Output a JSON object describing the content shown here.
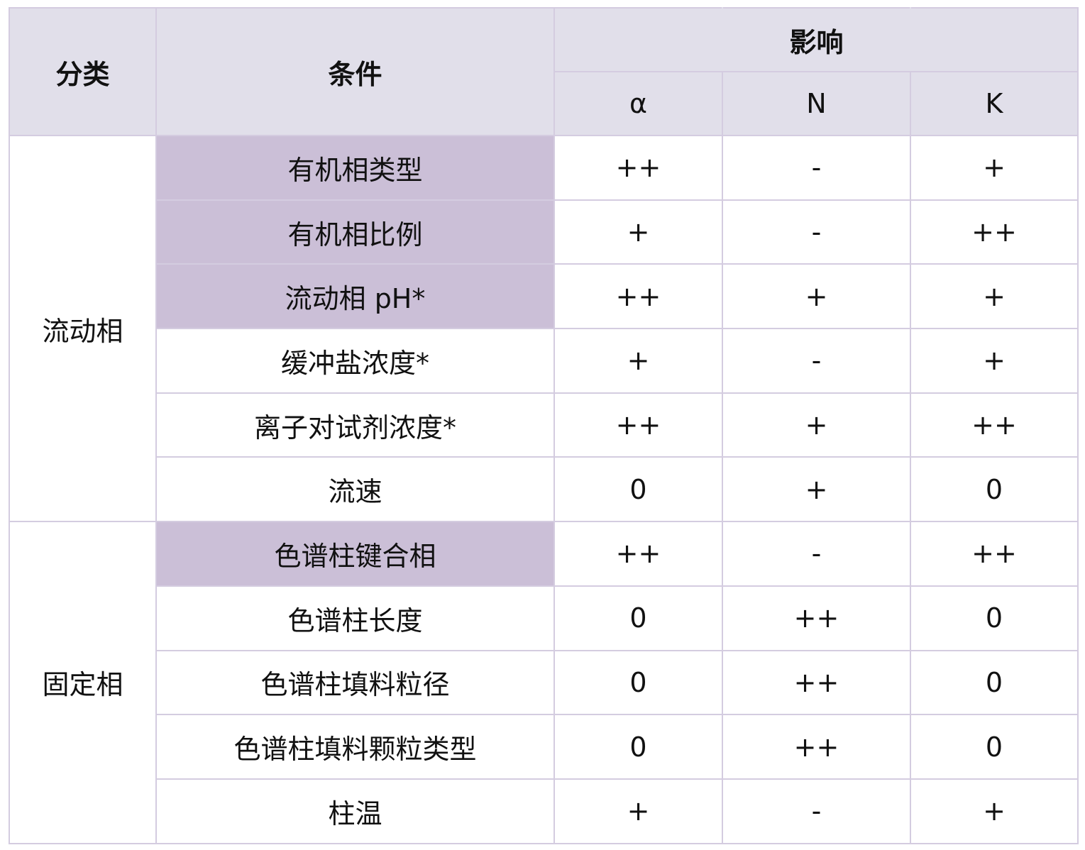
{
  "headers": {
    "category": "分类",
    "condition": "条件",
    "effect": "影响",
    "alpha": "α",
    "n": "N",
    "k": "K"
  },
  "groups": [
    {
      "name": "流动相",
      "rows": [
        {
          "condition": "有机相类型",
          "alpha": "++",
          "n": "-",
          "k": "+",
          "highlight": true
        },
        {
          "condition": "有机相比例",
          "alpha": "+",
          "n": "-",
          "k": "++",
          "highlight": true
        },
        {
          "condition": "流动相 pH*",
          "alpha": "++",
          "n": "+",
          "k": "+",
          "highlight": true
        },
        {
          "condition": "缓冲盐浓度*",
          "alpha": "+",
          "n": "-",
          "k": "+",
          "highlight": false
        },
        {
          "condition": "离子对试剂浓度*",
          "alpha": "++",
          "n": "+",
          "k": "++",
          "highlight": false
        },
        {
          "condition": "流速",
          "alpha": "0",
          "n": "+",
          "k": "0",
          "highlight": false
        }
      ]
    },
    {
      "name": "固定相",
      "rows": [
        {
          "condition": "色谱柱键合相",
          "alpha": "++",
          "n": "-",
          "k": "++",
          "highlight": true
        },
        {
          "condition": "色谱柱长度",
          "alpha": "0",
          "n": "++",
          "k": "0",
          "highlight": false
        },
        {
          "condition": "色谱柱填料粒径",
          "alpha": "0",
          "n": "++",
          "k": "0",
          "highlight": false
        },
        {
          "condition": "色谱柱填料颗粒类型",
          "alpha": "0",
          "n": "++",
          "k": "0",
          "highlight": false
        },
        {
          "condition": "柱温",
          "alpha": "+",
          "n": "-",
          "k": "+",
          "highlight": false
        }
      ]
    }
  ],
  "colors": {
    "header_bg": "#e1dfea",
    "highlight_bg": "#cbbfd7",
    "border": "#d4cce0"
  }
}
